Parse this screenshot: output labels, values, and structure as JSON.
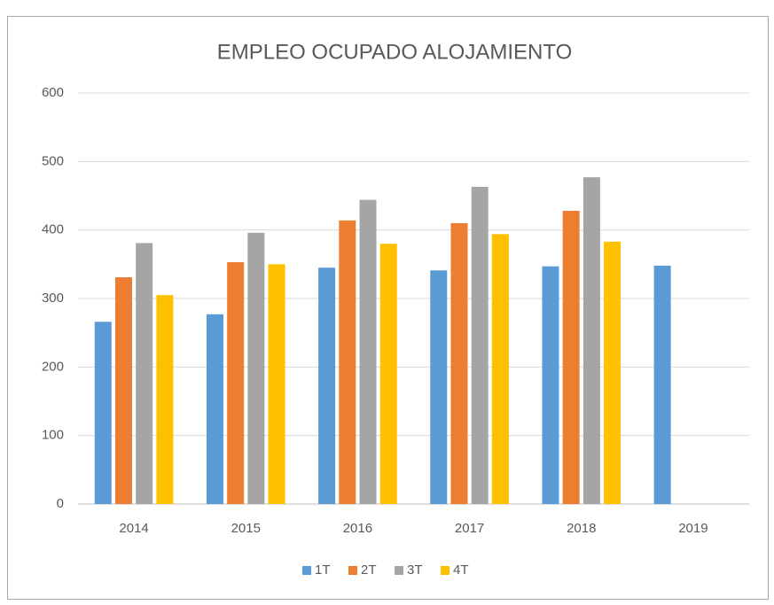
{
  "chart_data": {
    "type": "bar",
    "title": "EMPLEO OCUPADO ALOJAMIENTO",
    "categories": [
      "2014",
      "2015",
      "2016",
      "2017",
      "2018",
      "2019"
    ],
    "series": [
      {
        "name": "1T",
        "color": "#5b9bd5",
        "values": [
          266,
          277,
          345,
          341,
          347,
          348
        ]
      },
      {
        "name": "2T",
        "color": "#ed7d31",
        "values": [
          331,
          353,
          414,
          410,
          428,
          null
        ]
      },
      {
        "name": "3T",
        "color": "#a5a5a5",
        "values": [
          381,
          396,
          444,
          463,
          477,
          null
        ]
      },
      {
        "name": "4T",
        "color": "#ffc000",
        "values": [
          305,
          350,
          380,
          394,
          383,
          null
        ]
      }
    ],
    "ylim": [
      0,
      600
    ],
    "yticks": [
      0,
      100,
      200,
      300,
      400,
      500,
      600
    ],
    "grid": true,
    "legend": "bottom"
  }
}
